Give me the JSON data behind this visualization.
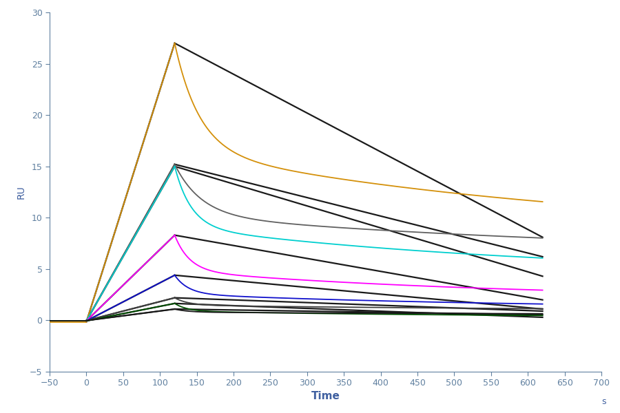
{
  "xlabel": "Time",
  "ylabel": "RU",
  "xlabel_unit": "s",
  "xlim": [
    -50,
    700
  ],
  "ylim": [
    -5,
    30
  ],
  "xticks": [
    -50,
    0,
    50,
    100,
    150,
    200,
    250,
    300,
    350,
    400,
    450,
    500,
    550,
    600,
    650,
    700
  ],
  "yticks": [
    -5,
    0,
    5,
    10,
    15,
    20,
    25,
    30
  ],
  "association_start": 0,
  "association_end": 120,
  "dissociation_end": 620,
  "background_color": "#ffffff",
  "curves": [
    {
      "color": "#D4900A",
      "peak": 27.0,
      "baseline": -0.15,
      "dissoc_fast_end": 16.5,
      "dissoc_final": 8.1,
      "kd_fast": 0.03,
      "kd_slow": 0.0018,
      "fit_end": 8.1
    },
    {
      "color": "#606060",
      "peak": 15.2,
      "baseline": -0.05,
      "dissoc_fast_end": 9.5,
      "dissoc_final": 6.2,
      "kd_fast": 0.028,
      "kd_slow": 0.0016,
      "fit_end": 6.2
    },
    {
      "color": "#00CFCF",
      "peak": 15.0,
      "baseline": -0.05,
      "dissoc_fast_end": 9.5,
      "dissoc_final": 4.3,
      "kd_fast": 0.045,
      "kd_slow": 0.002,
      "fit_end": 4.3
    },
    {
      "color": "#FF00FF",
      "peak": 8.3,
      "baseline": -0.05,
      "dissoc_fast_end": 5.2,
      "dissoc_final": 2.0,
      "kd_fast": 0.05,
      "kd_slow": 0.0022,
      "fit_end": 2.0
    },
    {
      "color": "#1010CC",
      "peak": 4.4,
      "baseline": -0.05,
      "dissoc_fast_end": 2.8,
      "dissoc_final": 1.1,
      "kd_fast": 0.055,
      "kd_slow": 0.0022,
      "fit_end": 1.1
    },
    {
      "color": "#404040",
      "peak": 2.2,
      "baseline": -0.02,
      "dissoc_fast_end": 1.5,
      "dissoc_final": 0.9,
      "kd_fast": 0.055,
      "kd_slow": 0.0018,
      "fit_end": 0.9
    },
    {
      "color": "#005000",
      "peak": 1.65,
      "baseline": -0.05,
      "dissoc_fast_end": 1.0,
      "dissoc_final": 0.3,
      "kd_fast": 0.06,
      "kd_slow": 0.0025,
      "fit_end": 0.3
    },
    {
      "color": "#181818",
      "peak": 1.1,
      "baseline": -0.02,
      "dissoc_fast_end": 0.75,
      "dissoc_final": 0.55,
      "kd_fast": 0.055,
      "kd_slow": 0.0018,
      "fit_end": 0.55
    }
  ],
  "fit_color": "#1a1a1a",
  "fit_linewidth": 1.6,
  "curve_linewidth": 1.3,
  "tick_color": "#6080A0",
  "label_color": "#4060A0",
  "spine_color": "#6080A0"
}
